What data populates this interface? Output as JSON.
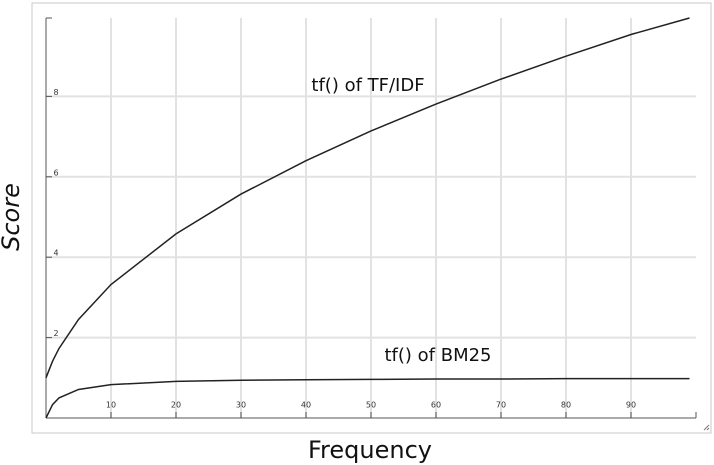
{
  "chart_data": {
    "type": "line",
    "xlabel": "Frequency",
    "ylabel": "Score",
    "annotations": [
      "tf() of TF/IDF",
      "tf() of BM25"
    ],
    "xlim": [
      0,
      100
    ],
    "ylim": [
      0,
      10
    ],
    "xticks": [
      10,
      20,
      30,
      40,
      50,
      60,
      70,
      80,
      90
    ],
    "yticks": [
      2,
      4,
      6,
      8
    ],
    "grid": true,
    "x": [
      0,
      1,
      2,
      5,
      10,
      20,
      30,
      40,
      50,
      60,
      70,
      80,
      90,
      99
    ],
    "series": [
      {
        "color": "#222222",
        "values": [
          1,
          1.41,
          1.73,
          2.45,
          3.32,
          4.58,
          5.57,
          6.4,
          7.14,
          7.81,
          8.43,
          9,
          9.54,
          9.95
        ]
      },
      {
        "color": "#222222",
        "values": [
          0,
          0.33,
          0.5,
          0.71,
          0.83,
          0.91,
          0.94,
          0.95,
          0.96,
          0.97,
          0.97,
          0.98,
          0.98,
          0.98
        ]
      }
    ]
  }
}
